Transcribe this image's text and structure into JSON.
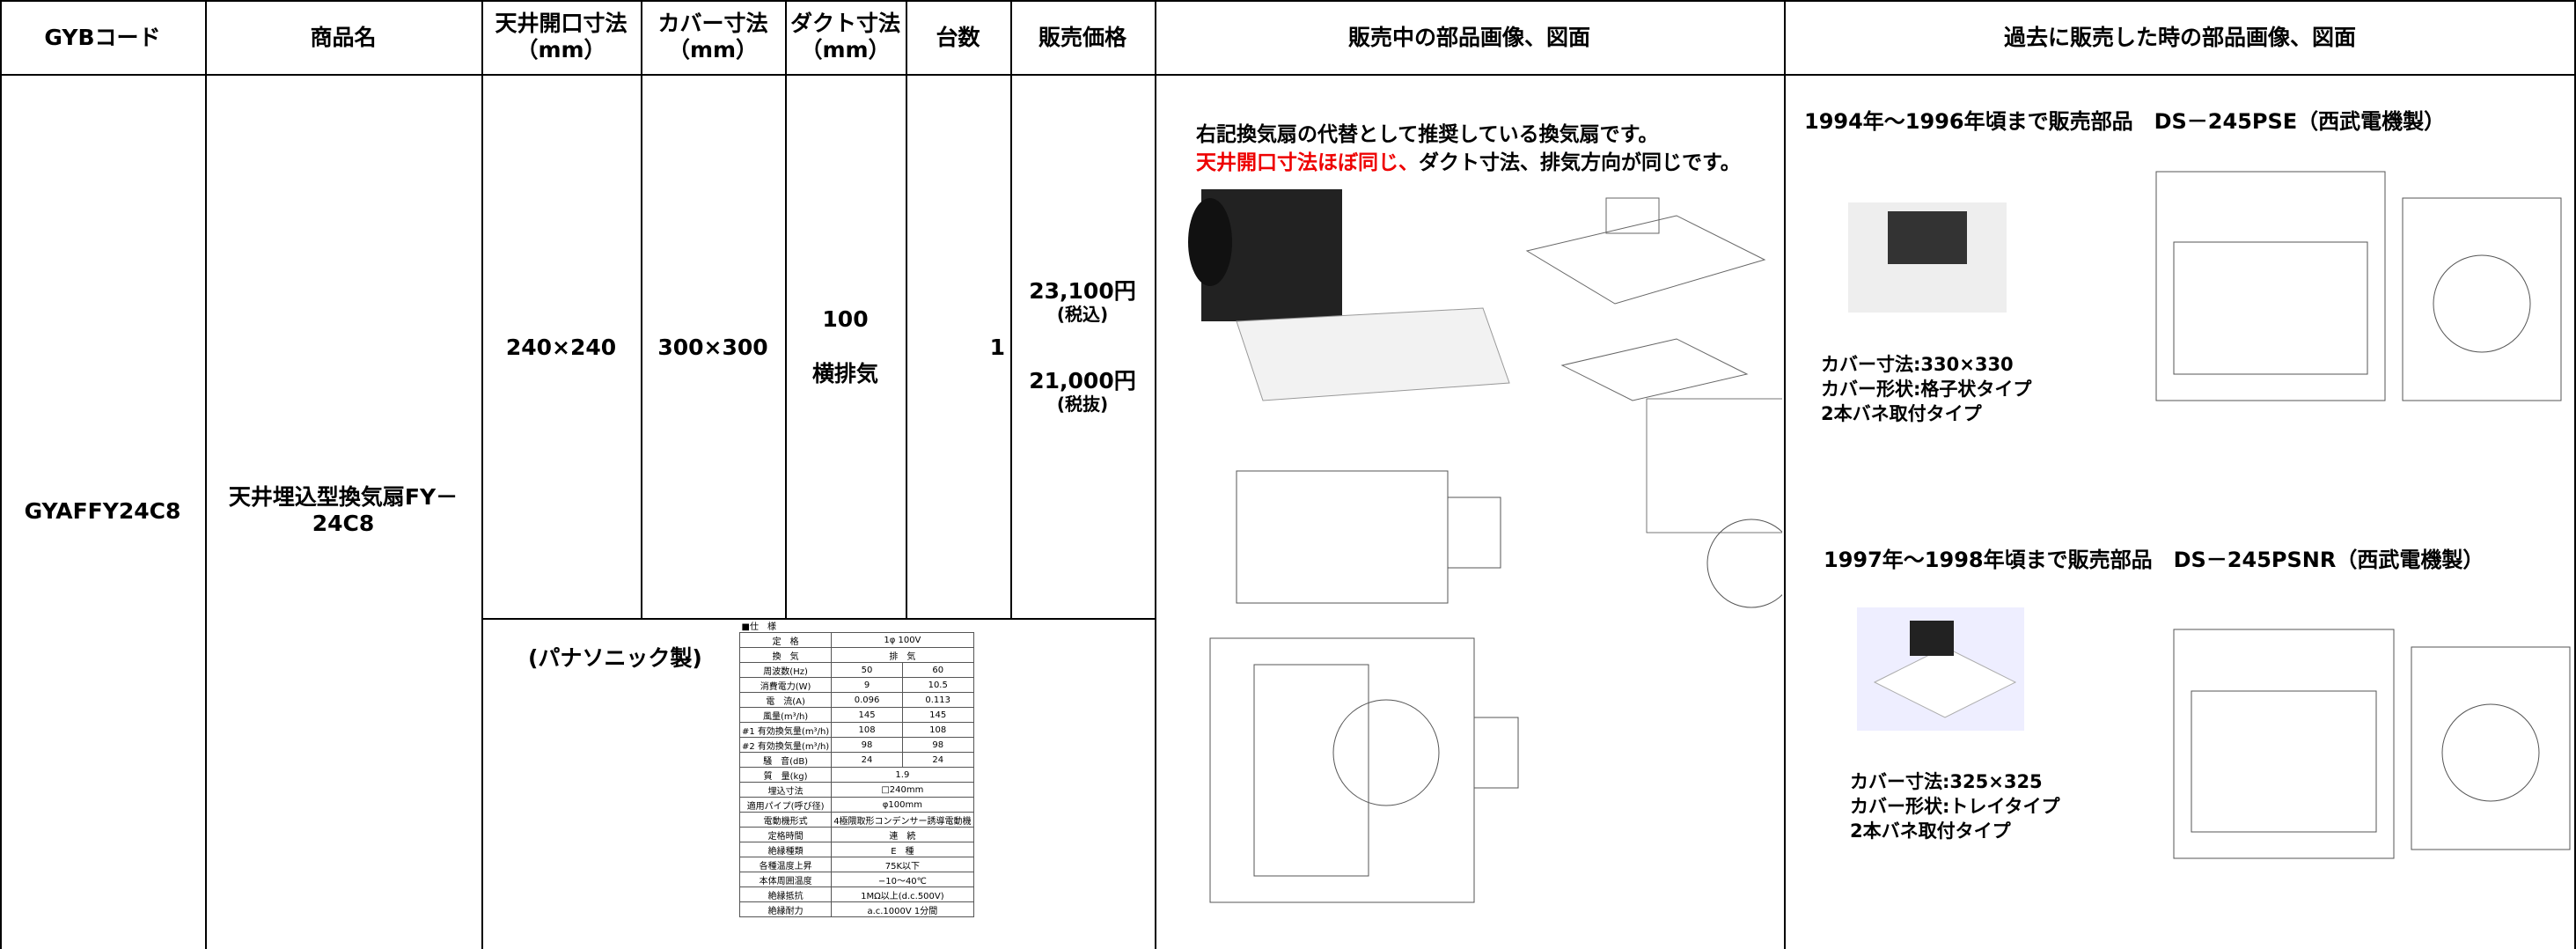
{
  "header": {
    "columns": [
      "GYBコード",
      "商品名",
      "天井開口寸法\n（mm）",
      "カバー寸法\n（mm）",
      "ダクト寸法\n（mm）",
      "台数",
      "販売価格",
      "販売中の部品画像、図面",
      "過去に販売した時の部品画像、図面"
    ]
  },
  "row": {
    "code": "GYAFFY24C8",
    "name": "天井埋込型換気扇FY－24C8",
    "opening": "240×240",
    "cover": "300×300",
    "duct": "100",
    "exhaust": "横排気",
    "quantity": "1",
    "price_tax_in": "23,100円",
    "tax_in": "(税込)",
    "price_tax_out": "21,000円",
    "tax_out": "(税抜)",
    "maker": "(パナソニック製)"
  },
  "current": {
    "note_line1": "右記換気扇の代替として推奨している換気扇です。",
    "note_highlight": "天井開口寸法ほぼ同じ、",
    "note_rest": "ダクト寸法、排気方向が同じです。"
  },
  "spec": {
    "title": "■仕　様",
    "rows": [
      [
        "定　格",
        "1φ 100V"
      ],
      [
        "換　気",
        "排　気"
      ],
      [
        "周波数(Hz)",
        "50",
        "60"
      ],
      [
        "消費電力(W)",
        "9",
        "10.5"
      ],
      [
        "電　流(A)",
        "0.096",
        "0.113"
      ],
      [
        "風量(m³/h)",
        "145",
        "145"
      ],
      [
        "#1 有効換気量(m³/h)",
        "108",
        "108"
      ],
      [
        "#2 有効換気量(m³/h)",
        "98",
        "98"
      ],
      [
        "騒　音(dB)",
        "24",
        "24"
      ],
      [
        "質　量(kg)",
        "1.9"
      ],
      [
        "埋込寸法",
        "□240mm"
      ],
      [
        "適用パイプ(呼び径)",
        "φ100mm"
      ],
      [
        "電動機形式",
        "4極隈取形コンデンサー誘導電動機"
      ],
      [
        "定格時間",
        "連　続"
      ],
      [
        "絶縁種類",
        "E　種"
      ],
      [
        "各種温度上昇",
        "75K以下"
      ],
      [
        "本体周囲温度",
        "−10〜40℃"
      ],
      [
        "絶縁抵抗",
        "1MΩ以上(d.c.500V)"
      ],
      [
        "絶縁耐力",
        "a.c.1000V 1分間"
      ]
    ]
  },
  "past": [
    {
      "title": "1994年～1996年頃まで販売部品　DS－245PSE（西武電機製）",
      "cover_size": "カバー寸法:330×330",
      "cover_shape": "カバー形状:格子状タイプ",
      "mount": "2本バネ取付タイプ"
    },
    {
      "title": "1997年～1998年頃まで販売部品　DS－245PSNR（西武電機製）",
      "cover_size": "カバー寸法:325×325",
      "cover_shape": "カバー形状:トレイタイプ",
      "mount": "2本バネ取付タイプ"
    }
  ]
}
